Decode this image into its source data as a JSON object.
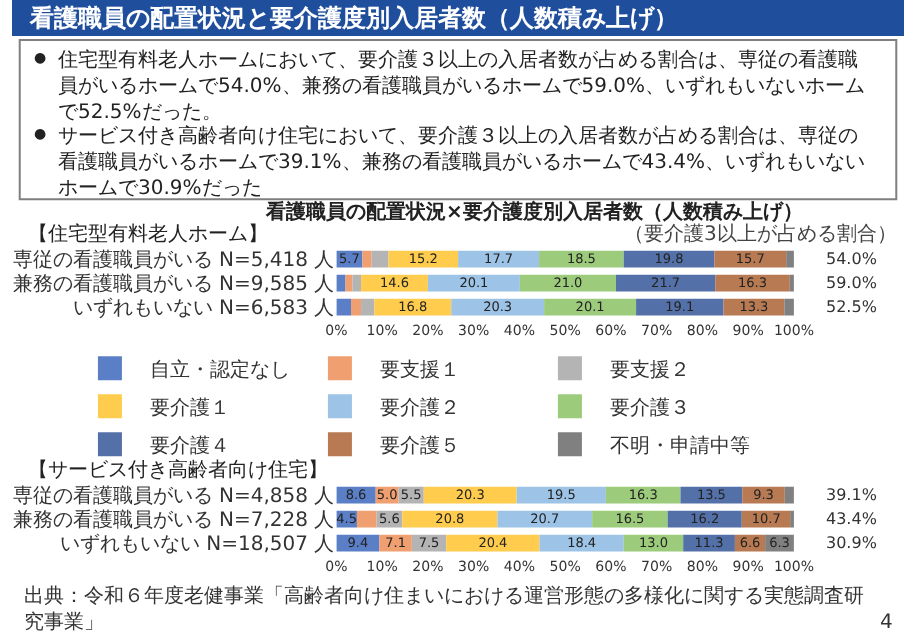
{
  "chart_data": [
    {
      "type": "bar",
      "orientation": "horizontal",
      "stacked": true,
      "title": "【住宅型有料老人ホーム】",
      "categories": [
        "専従の看護職員がいる N=5,418 人",
        "兼務の看護職員がいる N=9,585 人",
        "いずれもいない N=6,583 人"
      ],
      "series": [
        {
          "name": "自立・認定なし",
          "color": "#5b7fc6",
          "values": [
            5.7,
            2.0,
            3.2
          ],
          "value_labels": [
            "5.7",
            null,
            null
          ]
        },
        {
          "name": "要支援１",
          "color": "#f0a070",
          "values": [
            2.0,
            1.5,
            2.2
          ],
          "value_labels": [
            null,
            null,
            null
          ]
        },
        {
          "name": "要支援２",
          "color": "#b4b4b4",
          "values": [
            3.7,
            1.9,
            2.9
          ],
          "value_labels": [
            null,
            null,
            null
          ]
        },
        {
          "name": "要介護１",
          "color": "#ffcc4d",
          "values": [
            15.2,
            14.6,
            16.8
          ],
          "value_labels": [
            "15.2",
            "14.6",
            "16.8"
          ]
        },
        {
          "name": "要介護２",
          "color": "#9dc3e6",
          "values": [
            17.7,
            20.1,
            20.3
          ],
          "value_labels": [
            "17.7",
            "20.1",
            "20.3"
          ]
        },
        {
          "name": "要介護３",
          "color": "#9ccb7c",
          "values": [
            18.5,
            21.0,
            20.1
          ],
          "value_labels": [
            "18.5",
            "21.0",
            "20.1"
          ]
        },
        {
          "name": "要介護４",
          "color": "#5470a8",
          "values": [
            19.8,
            21.7,
            19.1
          ],
          "value_labels": [
            "19.8",
            "21.7",
            "19.1"
          ]
        },
        {
          "name": "要介護５",
          "color": "#b87a52",
          "values": [
            15.7,
            16.3,
            13.3
          ],
          "value_labels": [
            "15.7",
            "16.3",
            "13.3"
          ]
        },
        {
          "name": "不明・申請中等",
          "color": "#808080",
          "values": [
            1.7,
            0.9,
            2.1
          ],
          "value_labels": [
            null,
            null,
            null
          ]
        }
      ],
      "xlim": [
        0,
        100
      ],
      "xticks": [
        {
          "value": 0,
          "label": "0%"
        },
        {
          "value": 10,
          "label": "10%"
        },
        {
          "value": 20,
          "label": "20%"
        },
        {
          "value": 30,
          "label": "30%"
        },
        {
          "value": 40,
          "label": "40%"
        },
        {
          "value": 50,
          "label": "50%"
        },
        {
          "value": 60,
          "label": "60%"
        },
        {
          "value": 70,
          "label": "70%"
        },
        {
          "value": 80,
          "label": "80%"
        },
        {
          "value": 90,
          "label": "90%"
        },
        {
          "value": 100,
          "label": "100%"
        }
      ],
      "legend": "bottom",
      "annotations": [
        "看護職員の配置状況と要介護度別入居者数（人数積み上げ）",
        "●",
        "住宅型有料老人ホームにおいて、要介護３以上の入居者数が占める割合は、専従の看護職員がいるホームで54.0%、兼務の看護職員がいるホームで59.0%、いずれもいないホームで52.5%だった。",
        "●",
        "サービス付き高齢者向け住宅において、要介護３以上の入居者数が占める割合は、専従の看護職員がいるホームで39.1%、兼務の看護職員がいるホームで43.4%、いずれもいないホームで30.9%だった",
        "看護職員の配置状況×要介護度別入居者数（人数積み上げ）",
        "（要介護3以上が占める割合）",
        "54.0%",
        "59.0%",
        "52.5%"
      ]
    },
    {
      "type": "bar",
      "orientation": "horizontal",
      "stacked": true,
      "title": "【サービス付き高齢者向け住宅】",
      "categories": [
        "専従の看護職員がいる N=4,858 人",
        "兼務の看護職員がいる N=7,228 人",
        "いずれもいない N=18,507 人"
      ],
      "series": [
        {
          "color": "#5b7fc6",
          "values": [
            8.6,
            4.5,
            9.4
          ],
          "value_labels": [
            "8.6",
            "4.5",
            "9.4"
          ]
        },
        {
          "color": "#f0a070",
          "values": [
            5.0,
            4.3,
            7.1
          ],
          "value_labels": [
            "5.0",
            null,
            "7.1"
          ]
        },
        {
          "color": "#b4b4b4",
          "values": [
            5.5,
            5.6,
            7.5
          ],
          "value_labels": [
            "5.5",
            "5.6",
            "7.5"
          ]
        },
        {
          "color": "#ffcc4d",
          "values": [
            20.3,
            20.8,
            20.4
          ],
          "value_labels": [
            "20.3",
            "20.8",
            "20.4"
          ]
        },
        {
          "color": "#9dc3e6",
          "values": [
            19.5,
            20.7,
            18.4
          ],
          "value_labels": [
            "19.5",
            "20.7",
            "18.4"
          ]
        },
        {
          "color": "#9ccb7c",
          "values": [
            16.3,
            16.5,
            13.0
          ],
          "value_labels": [
            "16.3",
            "16.5",
            "13.0"
          ]
        },
        {
          "color": "#5470a8",
          "values": [
            13.5,
            16.2,
            11.3
          ],
          "value_labels": [
            "13.5",
            "16.2",
            "11.3"
          ]
        },
        {
          "color": "#b87a52",
          "values": [
            9.3,
            10.7,
            6.6
          ],
          "value_labels": [
            "9.3",
            "10.7",
            "6.6"
          ]
        },
        {
          "color": "#808080",
          "values": [
            2.0,
            0.7,
            6.3
          ],
          "value_labels": [
            null,
            null,
            "6.3"
          ]
        }
      ],
      "xlim": [
        0,
        100
      ],
      "xticks": [
        {
          "value": 0,
          "label": "0%"
        },
        {
          "value": 10,
          "label": "10%"
        },
        {
          "value": 20,
          "label": "20%"
        },
        {
          "value": 30,
          "label": "30%"
        },
        {
          "value": 40,
          "label": "40%"
        },
        {
          "value": 50,
          "label": "50%"
        },
        {
          "value": 60,
          "label": "60%"
        },
        {
          "value": 70,
          "label": "70%"
        },
        {
          "value": 80,
          "label": "80%"
        },
        {
          "value": 90,
          "label": "90%"
        },
        {
          "value": 100,
          "label": "100%"
        }
      ],
      "annotations": [
        "39.1%",
        "43.4%",
        "30.9%",
        "出典：令和６年度老健事業「高齢者向け住まいにおける運営形態の多様化に関する実態調査研究事業」",
        "4"
      ]
    }
  ]
}
